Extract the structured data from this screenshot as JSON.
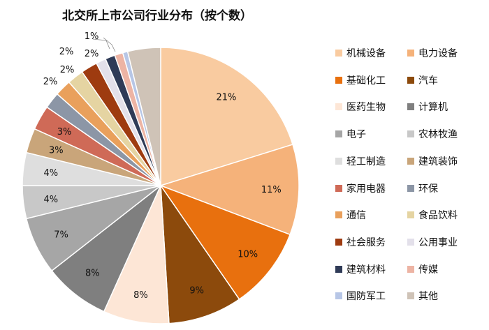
{
  "chart_data": {
    "type": "pie",
    "title": "北交所上市公司行业分布（按个数）",
    "legend_position": "right",
    "slices": [
      {
        "name": "机械设备",
        "value": 21,
        "label": "21%",
        "color": "#F9CBA0"
      },
      {
        "name": "电力设备",
        "value": 11,
        "label": "11%",
        "color": "#F5B27A"
      },
      {
        "name": "基础化工",
        "value": 10,
        "label": "10%",
        "color": "#E8700E"
      },
      {
        "name": "汽车",
        "value": 9,
        "label": "9%",
        "color": "#8C4A0C"
      },
      {
        "name": "医药生物",
        "value": 8,
        "label": "8%",
        "color": "#FDE6D6"
      },
      {
        "name": "计算机",
        "value": 8,
        "label": "8%",
        "color": "#7F7F7F"
      },
      {
        "name": "电子",
        "value": 7,
        "label": "7%",
        "color": "#A6A6A6"
      },
      {
        "name": "农林牧渔",
        "value": 4,
        "label": "4%",
        "color": "#C8C8C8"
      },
      {
        "name": "轻工制造",
        "value": 4,
        "label": "4%",
        "color": "#DEDEDE"
      },
      {
        "name": "建筑装饰",
        "value": 3,
        "label": "3%",
        "color": "#C9A57A"
      },
      {
        "name": "家用电器",
        "value": 3,
        "label": "3%",
        "color": "#CF6A57"
      },
      {
        "name": "环保",
        "value": 2,
        "label": "2%",
        "color": "#8C96A6"
      },
      {
        "name": "通信",
        "value": 2,
        "label": "2%",
        "color": "#E9A05C"
      },
      {
        "name": "食品饮料",
        "value": 2,
        "label": "2%",
        "color": "#E5D4A2"
      },
      {
        "name": "社会服务",
        "value": 2,
        "label": "2%",
        "color": "#9E3B10"
      },
      {
        "name": "公用事业",
        "value": 1.2,
        "label": "",
        "color": "#E3E0EA"
      },
      {
        "name": "建筑材料",
        "value": 1.2,
        "label": "1%",
        "color": "#2F3B57"
      },
      {
        "name": "传媒",
        "value": 1.0,
        "label": "",
        "color": "#EDB4A4"
      },
      {
        "name": "国防军工",
        "value": 0.6,
        "label": "",
        "color": "#B7C6E6"
      },
      {
        "name": "其他",
        "value": 4,
        "label": "",
        "color": "#CFC3B7"
      }
    ]
  }
}
